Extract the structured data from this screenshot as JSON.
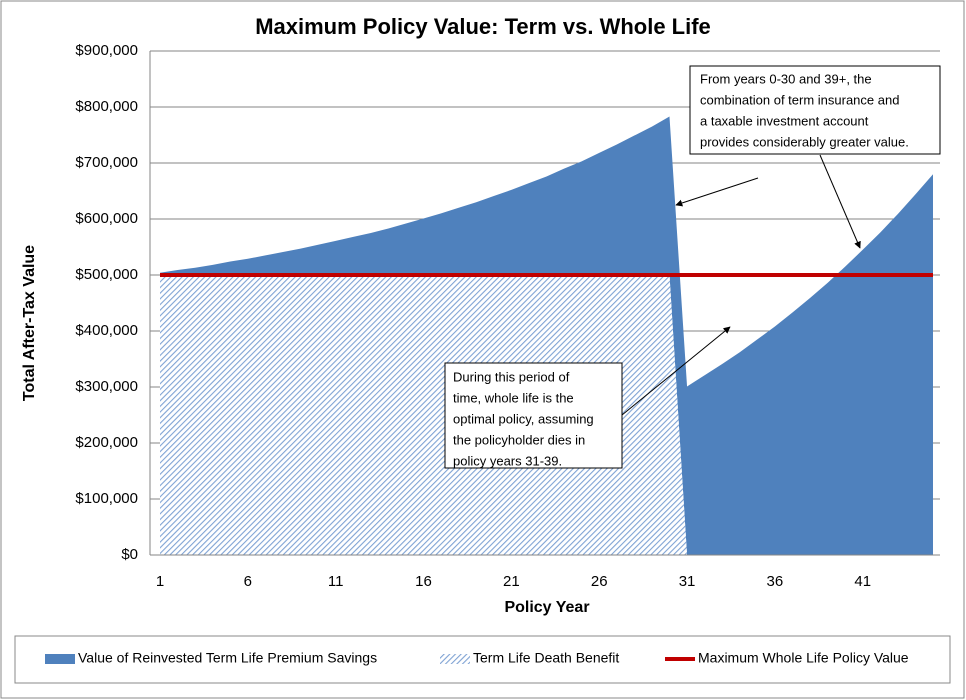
{
  "chart_data": {
    "type": "area",
    "title": "Maximum Policy Value: Term vs. Whole Life",
    "x_label": "Policy Year",
    "y_label": "Total After-Tax Value",
    "categories": [
      1,
      null,
      null,
      null,
      null,
      6,
      null,
      null,
      null,
      null,
      11,
      null,
      null,
      null,
      null,
      16,
      null,
      null,
      null,
      null,
      21,
      null,
      null,
      null,
      null,
      26,
      null,
      null,
      null,
      null,
      31,
      null,
      null,
      null,
      null,
      36,
      null,
      null,
      null,
      null,
      41,
      null,
      null,
      null,
      null
    ],
    "series": [
      {
        "name": "Value of Reinvested Term Life Premium Savings",
        "type": "area",
        "fill": "solid",
        "color": "#4f81bd",
        "values": [
          4000,
          9000,
          13000,
          18000,
          24000,
          29000,
          35000,
          41000,
          47000,
          54000,
          61000,
          68000,
          75000,
          83000,
          92000,
          101000,
          110000,
          120000,
          130000,
          141000,
          152000,
          164000,
          176000,
          190000,
          203000,
          218000,
          233000,
          249000,
          265000,
          283000,
          301000,
          321000,
          341000,
          362000,
          385000,
          408000,
          433000,
          459000,
          486000,
          515000,
          545000,
          576000,
          609000,
          644000,
          680000
        ]
      },
      {
        "name": "Term Life Death Benefit",
        "type": "area",
        "fill": "hatch",
        "color": "#4f81bd",
        "values": [
          500000,
          500000,
          500000,
          500000,
          500000,
          500000,
          500000,
          500000,
          500000,
          500000,
          500000,
          500000,
          500000,
          500000,
          500000,
          500000,
          500000,
          500000,
          500000,
          500000,
          500000,
          500000,
          500000,
          500000,
          500000,
          500000,
          500000,
          500000,
          500000,
          500000,
          0,
          0,
          0,
          0,
          0,
          0,
          0,
          0,
          0,
          0,
          0,
          0,
          0,
          0,
          0
        ]
      },
      {
        "name": "Maximum Whole Life Policy Value",
        "type": "line",
        "color": "#c00000",
        "values": [
          500000,
          500000,
          500000,
          500000,
          500000,
          500000,
          500000,
          500000,
          500000,
          500000,
          500000,
          500000,
          500000,
          500000,
          500000,
          500000,
          500000,
          500000,
          500000,
          500000,
          500000,
          500000,
          500000,
          500000,
          500000,
          500000,
          500000,
          500000,
          500000,
          500000,
          500000,
          500000,
          500000,
          500000,
          500000,
          500000,
          500000,
          500000,
          500000,
          500000,
          500000,
          500000,
          500000,
          500000,
          500000
        ]
      }
    ],
    "stacked": true,
    "ylim": [
      0,
      900000
    ],
    "yticks": [
      {
        "value": 0,
        "label": "$0"
      },
      {
        "value": 100000,
        "label": "$100,000"
      },
      {
        "value": 200000,
        "label": "$200,000"
      },
      {
        "value": 300000,
        "label": "$300,000"
      },
      {
        "value": 400000,
        "label": "$400,000"
      },
      {
        "value": 500000,
        "label": "$500,000"
      },
      {
        "value": 600000,
        "label": "$600,000"
      },
      {
        "value": 700000,
        "label": "$700,000"
      },
      {
        "value": 800000,
        "label": "$800,000"
      },
      {
        "value": 900000,
        "label": "$900,000"
      }
    ],
    "grid": true,
    "legend": "bottom",
    "annotations": [
      {
        "lines": [
          "From years 0-30 and 39+, the",
          "combination of term insurance and",
          "a taxable investment account",
          "provides considerably greater value."
        ]
      },
      {
        "lines": [
          "During this period of",
          "time, whole life is the",
          "optimal policy, assuming",
          "the policyholder dies in",
          "policy years 31-39."
        ]
      }
    ]
  }
}
